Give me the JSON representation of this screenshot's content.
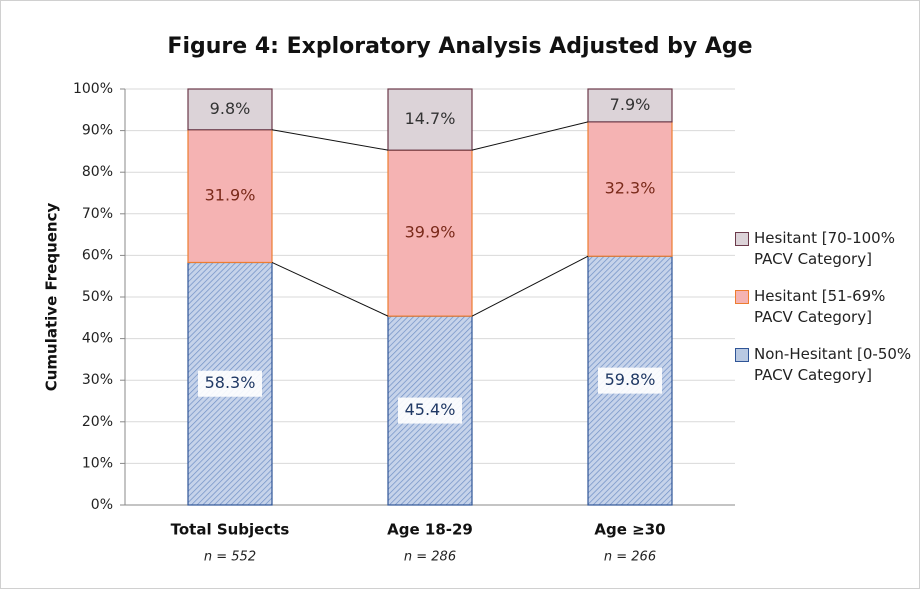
{
  "chart_data": {
    "type": "stacked_bar",
    "title": "Figure 4: Exploratory Analysis Adjusted by Age",
    "y_label": "Cumulative Frequency",
    "categories": [
      "Total Subjects",
      "Age 18-29",
      "Age ≥30"
    ],
    "category_notes": [
      "n = 552",
      "n = 286",
      "n = 266"
    ],
    "series": [
      {
        "name": "Non-Hesitant [0-50% PACV Category]",
        "color": "#b9c9e2",
        "stroke": "#2f5597",
        "text_color": "#1f3864",
        "values": [
          58.3,
          45.4,
          59.8
        ],
        "value_labels": [
          "58.3%",
          "45.4%",
          "59.8%"
        ]
      },
      {
        "name": "Hesitant [51-69% PACV Category]",
        "color": "#f5b3b3",
        "stroke": "#ed7d31",
        "text_color": "#7a2a1a",
        "values": [
          31.9,
          39.9,
          32.3
        ],
        "value_labels": [
          "31.9%",
          "39.9%",
          "32.3%"
        ]
      },
      {
        "name": "Hesitant [70-100% PACV Category]",
        "color": "#dcd3d8",
        "stroke": "#6b3a4a",
        "text_color": "#333333",
        "values": [
          9.8,
          14.7,
          7.9
        ],
        "value_labels": [
          "9.8%",
          "14.7%",
          "7.9%"
        ]
      }
    ],
    "ylim": [
      0,
      100
    ],
    "yticks": [
      {
        "value": 0,
        "label": "0%"
      },
      {
        "value": 10,
        "label": "10%"
      },
      {
        "value": 20,
        "label": "20%"
      },
      {
        "value": 30,
        "label": "30%"
      },
      {
        "value": 40,
        "label": "40%"
      },
      {
        "value": 50,
        "label": "50%"
      },
      {
        "value": 60,
        "label": "60%"
      },
      {
        "value": 70,
        "label": "70%"
      },
      {
        "value": 80,
        "label": "80%"
      },
      {
        "value": 90,
        "label": "90%"
      },
      {
        "value": 100,
        "label": "100%"
      }
    ],
    "grid": true,
    "legend": "right"
  }
}
